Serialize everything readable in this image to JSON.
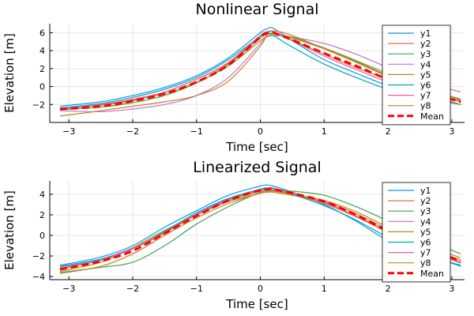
{
  "chart_data": [
    {
      "type": "line",
      "title": "Nonlinear Signal",
      "xlabel": "Time [sec]",
      "ylabel": "Elevation [m]",
      "xlim": [
        -3.3,
        3.2
      ],
      "ylim": [
        -4,
        7
      ],
      "xticks": [
        -3,
        -2,
        -1,
        0,
        1,
        2,
        3
      ],
      "yticks": [
        -2,
        0,
        2,
        4,
        6
      ],
      "grid": true,
      "legend": "top-right",
      "x": [
        -3.14,
        -2.5,
        -2,
        -1.5,
        -1,
        -0.5,
        0,
        0.1,
        0.2,
        0.5,
        1,
        1.5,
        2,
        2.5,
        3.14
      ],
      "series": [
        {
          "name": "y1",
          "color": "#009AFA",
          "values": [
            -2.2,
            -1.7,
            -1.0,
            -0.1,
            1.2,
            3.2,
            6.0,
            6.4,
            6.5,
            5.1,
            3.0,
            1.5,
            0.1,
            -0.9,
            -2.0
          ],
          "dashed": false
        },
        {
          "name": "y2",
          "color": "#E36F47",
          "values": [
            -2.5,
            -2.1,
            -1.6,
            -0.6,
            0.8,
            2.6,
            5.6,
            6.0,
            6.1,
            5.2,
            3.6,
            2.1,
            0.8,
            -0.3,
            -1.7
          ],
          "dashed": false
        },
        {
          "name": "y3",
          "color": "#3EA44E",
          "values": [
            -2.6,
            -2.3,
            -1.8,
            -1.0,
            0.4,
            2.5,
            5.4,
            5.8,
            5.9,
            5.4,
            4.2,
            2.8,
            1.2,
            -0.1,
            -1.4
          ],
          "dashed": false
        },
        {
          "name": "y4",
          "color": "#C271D2",
          "values": [
            -2.7,
            -2.8,
            -2.5,
            -2.0,
            -1.0,
            1.0,
            4.8,
            5.6,
            5.7,
            5.5,
            4.8,
            3.6,
            2.1,
            0.6,
            -0.6
          ],
          "dashed": false
        },
        {
          "name": "y5",
          "color": "#AC8E18",
          "values": [
            -2.4,
            -2.0,
            -1.5,
            -0.8,
            0.5,
            2.3,
            5.1,
            5.5,
            5.7,
            5.5,
            4.3,
            2.9,
            1.4,
            0.0,
            -1.5
          ],
          "dashed": false
        },
        {
          "name": "y6",
          "color": "#00A9AD",
          "values": [
            -2.4,
            -1.9,
            -1.2,
            -0.3,
            1.0,
            3.0,
            5.6,
            5.9,
            5.7,
            4.4,
            2.5,
            1.0,
            -0.3,
            -1.2,
            -2.0
          ],
          "dashed": false
        },
        {
          "name": "y7",
          "color": "#ED5E93",
          "values": [
            -2.5,
            -2.0,
            -1.4,
            -0.6,
            0.8,
            2.7,
            5.7,
            6.1,
            6.1,
            5.1,
            3.4,
            1.9,
            0.5,
            -0.5,
            -1.6
          ],
          "dashed": false
        },
        {
          "name": "y8",
          "color": "#C68125",
          "values": [
            -3.3,
            -2.7,
            -2.2,
            -1.7,
            -1.0,
            0.6,
            4.5,
            5.8,
            6.2,
            5.7,
            4.2,
            2.7,
            1.1,
            -0.5,
            -2.0
          ],
          "dashed": false
        },
        {
          "name": "Mean",
          "color": "#FF0000",
          "values": [
            -2.5,
            -2.2,
            -1.6,
            -0.8,
            0.5,
            2.4,
            5.5,
            5.9,
            6.0,
            5.2,
            3.7,
            2.3,
            0.8,
            -0.4,
            -1.7
          ],
          "dashed": true
        }
      ]
    },
    {
      "type": "line",
      "title": "Linearized Signal",
      "xlabel": "Time [sec]",
      "ylabel": "Elevation [m]",
      "xlim": [
        -3.3,
        3.2
      ],
      "ylim": [
        -4.3,
        5.3
      ],
      "xticks": [
        -3,
        -2,
        -1,
        0,
        1,
        2,
        3
      ],
      "yticks": [
        -4,
        -2,
        0,
        2,
        4
      ],
      "grid": true,
      "legend": "top-right",
      "x": [
        -3.14,
        -2.5,
        -2,
        -1.5,
        -1,
        -0.5,
        0,
        0.1,
        0.2,
        0.5,
        1,
        1.5,
        2,
        2.5,
        3.14
      ],
      "series": [
        {
          "name": "y1",
          "color": "#009AFA",
          "values": [
            -2.9,
            -2.1,
            -1.0,
            0.8,
            2.4,
            3.9,
            4.8,
            4.9,
            4.8,
            4.2,
            3.0,
            1.4,
            -0.5,
            -1.7,
            -2.9
          ],
          "dashed": false
        },
        {
          "name": "y2",
          "color": "#E36F47",
          "values": [
            -3.2,
            -2.4,
            -1.3,
            0.2,
            2.0,
            3.5,
            4.4,
            4.5,
            4.5,
            4.0,
            3.1,
            1.8,
            0.3,
            -1.2,
            -2.7
          ],
          "dashed": false
        },
        {
          "name": "y3",
          "color": "#3EA44E",
          "values": [
            -3.6,
            -3.1,
            -2.6,
            -1.0,
            1.1,
            2.8,
            4.2,
            4.3,
            4.4,
            4.3,
            3.9,
            2.8,
            1.4,
            -0.1,
            -1.8
          ],
          "dashed": false
        },
        {
          "name": "y4",
          "color": "#C271D2",
          "values": [
            -3.1,
            -2.3,
            -1.2,
            0.3,
            2.1,
            3.5,
            4.3,
            4.4,
            4.4,
            4.0,
            3.2,
            1.9,
            0.4,
            -1.1,
            -2.6
          ],
          "dashed": false
        },
        {
          "name": "y5",
          "color": "#AC8E18",
          "values": [
            -3.5,
            -2.6,
            -1.2,
            0.5,
            2.0,
            3.3,
            4.1,
            4.2,
            4.2,
            3.9,
            3.3,
            2.1,
            0.6,
            -0.9,
            -2.4
          ],
          "dashed": false
        },
        {
          "name": "y6",
          "color": "#00A9AD",
          "values": [
            -3.0,
            -2.3,
            -1.3,
            0.4,
            2.2,
            3.6,
            4.5,
            4.6,
            4.6,
            4.0,
            2.9,
            1.5,
            -0.2,
            -1.6,
            -3.0
          ],
          "dashed": false
        },
        {
          "name": "y7",
          "color": "#ED5E93",
          "values": [
            -3.3,
            -2.4,
            -1.3,
            0.3,
            2.0,
            3.4,
            4.3,
            4.4,
            4.4,
            4.1,
            3.2,
            1.9,
            0.4,
            -1.0,
            -2.6
          ],
          "dashed": false
        },
        {
          "name": "y8",
          "color": "#C68125",
          "values": [
            -3.7,
            -3.0,
            -1.8,
            0.0,
            1.7,
            3.1,
            4.1,
            4.2,
            4.3,
            4.0,
            3.4,
            2.3,
            0.8,
            -0.6,
            -2.2
          ],
          "dashed": false
        },
        {
          "name": "Mean",
          "color": "#FF0000",
          "values": [
            -3.3,
            -2.5,
            -1.5,
            0.2,
            1.9,
            3.4,
            4.4,
            4.5,
            4.5,
            4.1,
            3.3,
            2.0,
            0.4,
            -1.0,
            -2.5
          ],
          "dashed": true
        }
      ]
    }
  ]
}
